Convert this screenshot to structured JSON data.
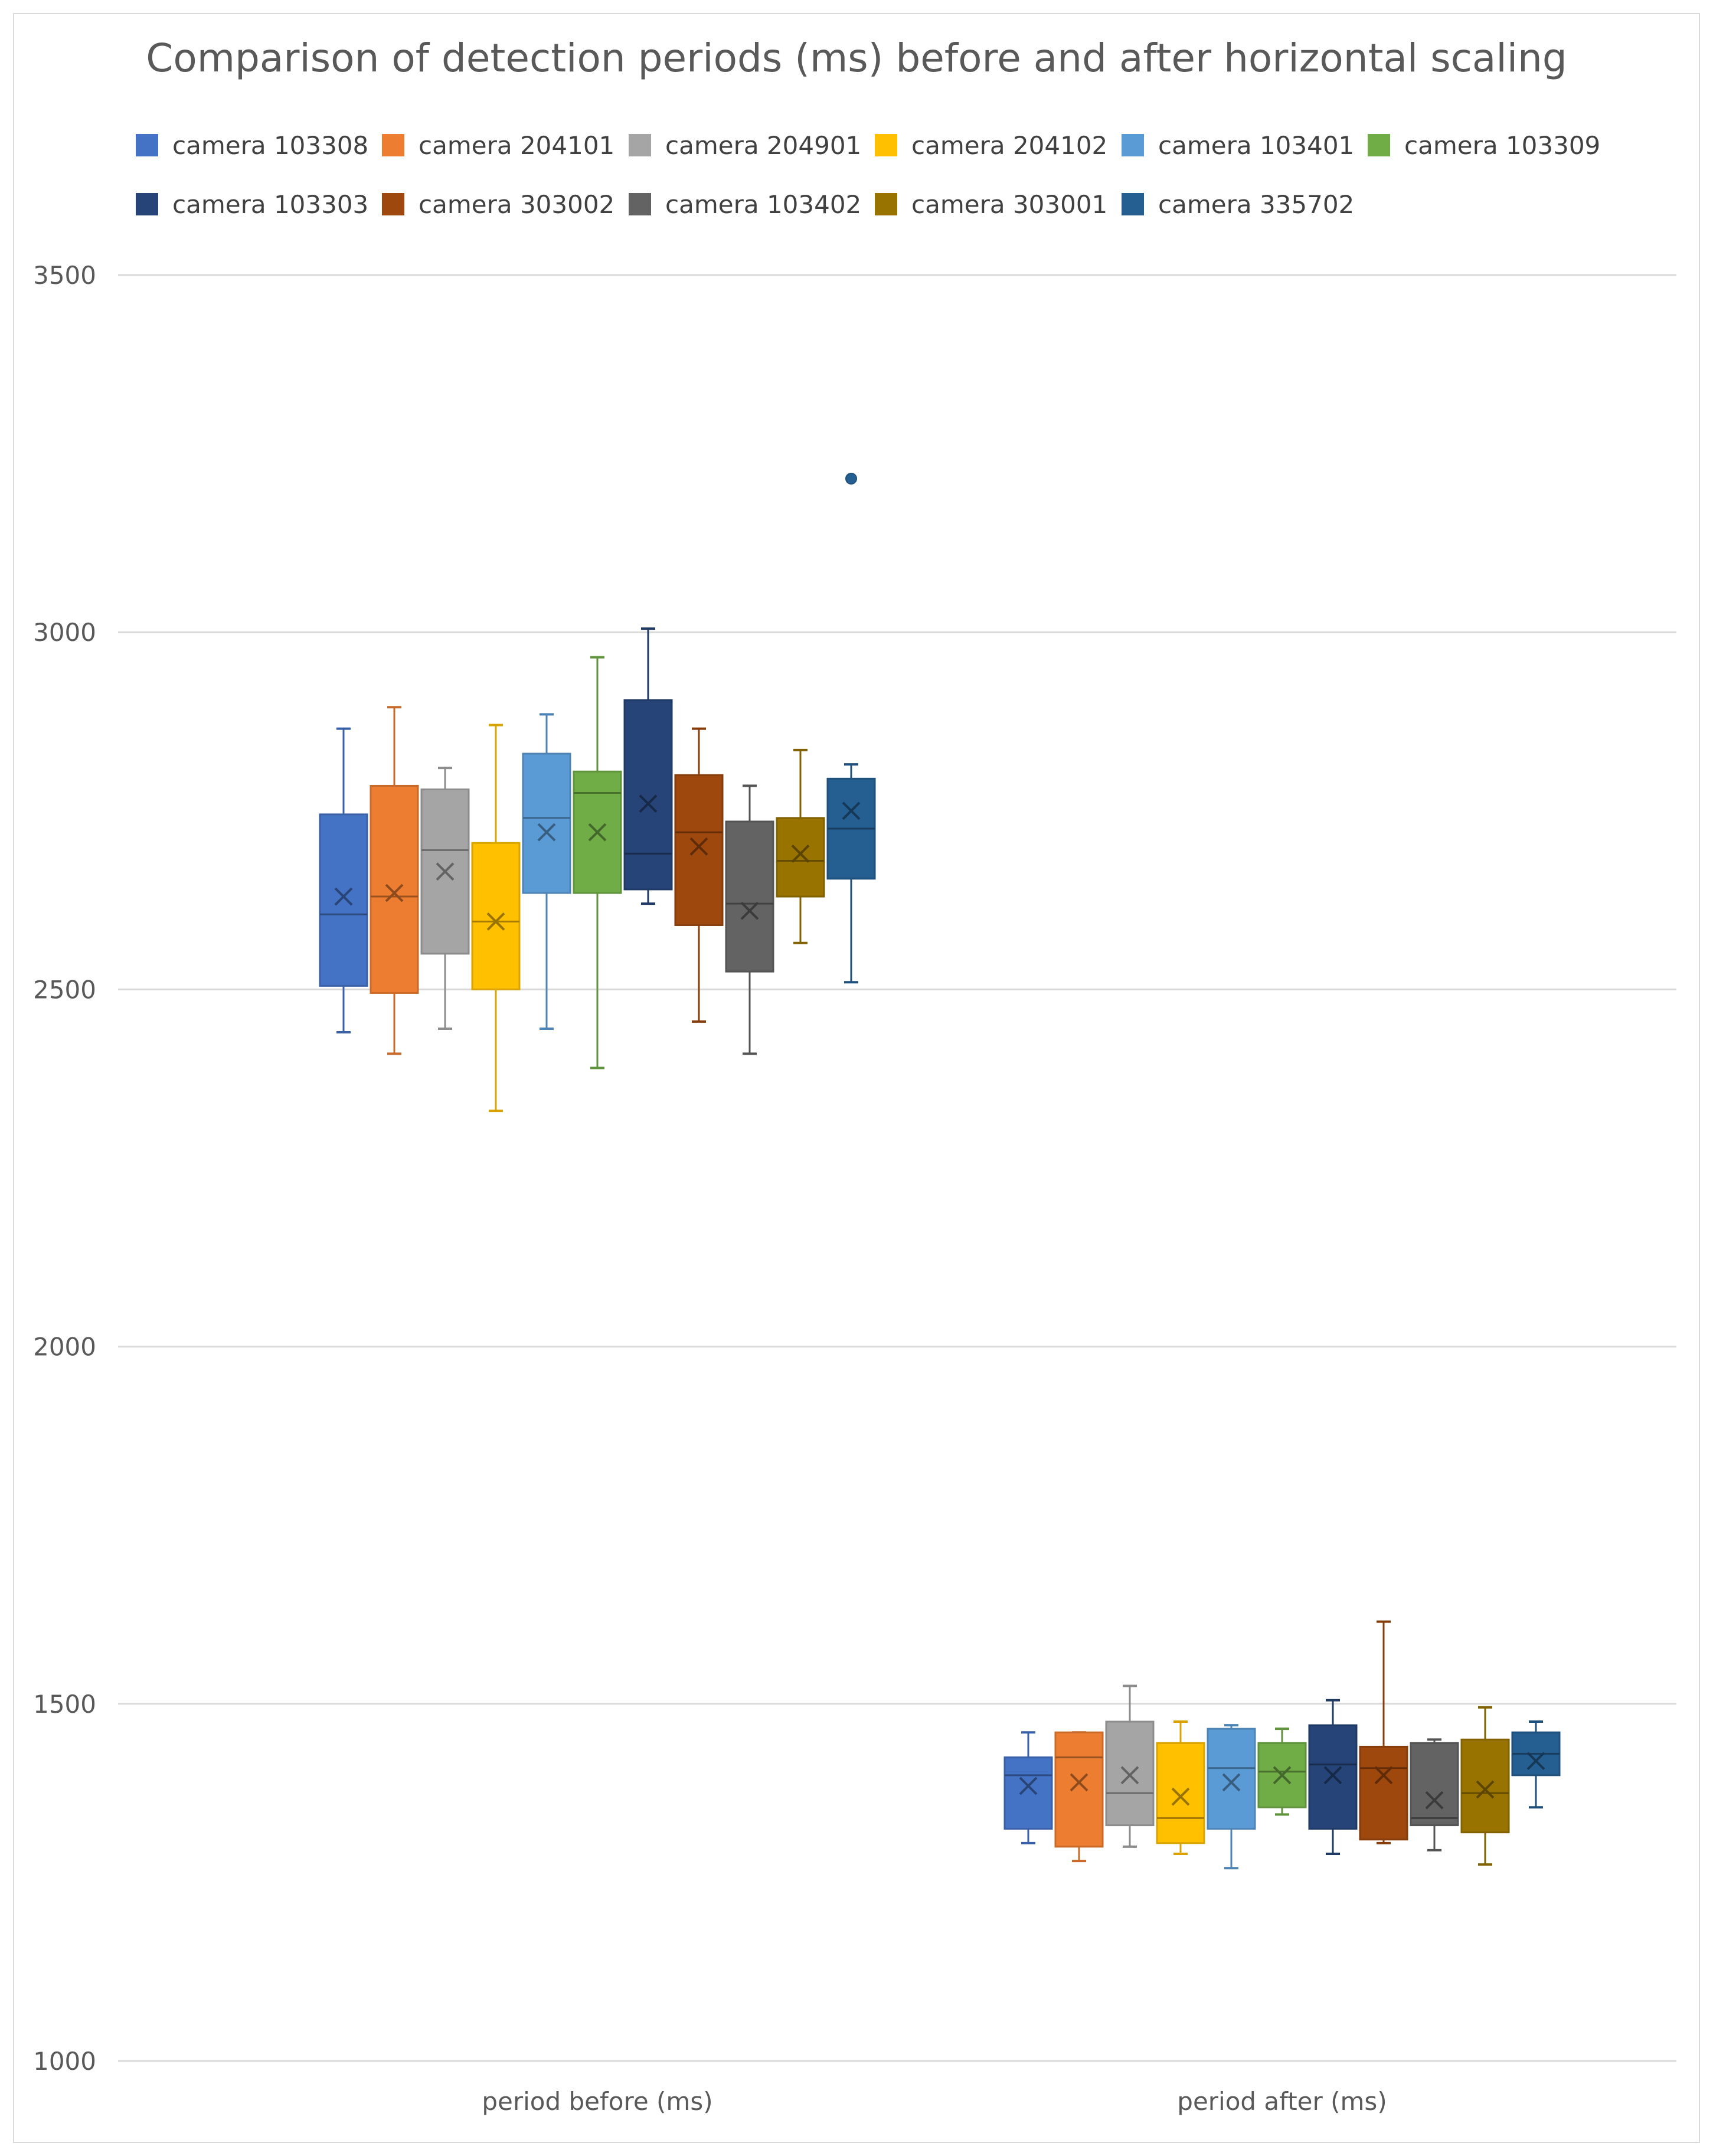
{
  "chart_data": {
    "type": "box",
    "title": "Comparison of detection periods (ms) before and after horizontal scaling",
    "xlabel": "",
    "ylabel": "",
    "ylim": [
      1000,
      3500
    ],
    "yticks": [
      "3500",
      "3000",
      "2500",
      "2000",
      "1500",
      "1000"
    ],
    "ytick_values": [
      3500,
      3000,
      2500,
      2000,
      1500,
      1000
    ],
    "categories": [
      "period before (ms)",
      "period after (ms)"
    ],
    "grid": true,
    "legend_position": "top",
    "series": [
      {
        "name": "camera 103308",
        "color": "#4472c4",
        "boxes": [
          {
            "min": 2440,
            "q1": 2505,
            "median": 2605,
            "q3": 2745,
            "max": 2865,
            "mean": 2630,
            "outliers": []
          },
          {
            "min": 1305,
            "q1": 1325,
            "median": 1400,
            "q3": 1425,
            "max": 1460,
            "mean": 1385,
            "outliers": []
          }
        ]
      },
      {
        "name": "camera 204101",
        "color": "#ed7d31",
        "boxes": [
          {
            "min": 2410,
            "q1": 2495,
            "median": 2630,
            "q3": 2785,
            "max": 2895,
            "mean": 2635,
            "outliers": []
          },
          {
            "min": 1280,
            "q1": 1300,
            "median": 1425,
            "q3": 1460,
            "max": 1460,
            "mean": 1390,
            "outliers": []
          }
        ]
      },
      {
        "name": "camera 204901",
        "color": "#a5a5a5",
        "boxes": [
          {
            "min": 2445,
            "q1": 2550,
            "median": 2695,
            "q3": 2780,
            "max": 2810,
            "mean": 2665,
            "outliers": []
          },
          {
            "min": 1300,
            "q1": 1330,
            "median": 1375,
            "q3": 1475,
            "max": 1525,
            "mean": 1400,
            "outliers": []
          }
        ]
      },
      {
        "name": "camera 204102",
        "color": "#ffc000",
        "boxes": [
          {
            "min": 2330,
            "q1": 2500,
            "median": 2595,
            "q3": 2705,
            "max": 2870,
            "mean": 2595,
            "outliers": []
          },
          {
            "min": 1290,
            "q1": 1305,
            "median": 1340,
            "q3": 1445,
            "max": 1475,
            "mean": 1370,
            "outliers": []
          }
        ]
      },
      {
        "name": "camera 103401",
        "color": "#5b9bd5",
        "boxes": [
          {
            "min": 2445,
            "q1": 2635,
            "median": 2740,
            "q3": 2830,
            "max": 2885,
            "mean": 2720,
            "outliers": []
          },
          {
            "min": 1270,
            "q1": 1325,
            "median": 1410,
            "q3": 1465,
            "max": 1470,
            "mean": 1390,
            "outliers": []
          }
        ]
      },
      {
        "name": "camera 103309",
        "color": "#70ad47",
        "boxes": [
          {
            "min": 2390,
            "q1": 2635,
            "median": 2775,
            "q3": 2805,
            "max": 2965,
            "mean": 2720,
            "outliers": []
          },
          {
            "min": 1345,
            "q1": 1355,
            "median": 1405,
            "q3": 1445,
            "max": 1465,
            "mean": 1400,
            "outliers": []
          }
        ]
      },
      {
        "name": "camera 103303",
        "color": "#264478",
        "boxes": [
          {
            "min": 2620,
            "q1": 2640,
            "median": 2690,
            "q3": 2905,
            "max": 3005,
            "mean": 2760,
            "outliers": []
          },
          {
            "min": 1290,
            "q1": 1325,
            "median": 1415,
            "q3": 1470,
            "max": 1505,
            "mean": 1400,
            "outliers": []
          }
        ]
      },
      {
        "name": "camera 303002",
        "color": "#9e480e",
        "boxes": [
          {
            "min": 2455,
            "q1": 2590,
            "median": 2720,
            "q3": 2800,
            "max": 2865,
            "mean": 2700,
            "outliers": []
          },
          {
            "min": 1305,
            "q1": 1310,
            "median": 1410,
            "q3": 1440,
            "max": 1615,
            "mean": 1400,
            "outliers": []
          }
        ]
      },
      {
        "name": "camera 103402",
        "color": "#636363",
        "boxes": [
          {
            "min": 2410,
            "q1": 2525,
            "median": 2620,
            "q3": 2735,
            "max": 2785,
            "mean": 2610,
            "outliers": []
          },
          {
            "min": 1295,
            "q1": 1330,
            "median": 1340,
            "q3": 1445,
            "max": 1450,
            "mean": 1365,
            "outliers": []
          }
        ]
      },
      {
        "name": "camera 303001",
        "color": "#997300",
        "boxes": [
          {
            "min": 2565,
            "q1": 2630,
            "median": 2680,
            "q3": 2740,
            "max": 2835,
            "mean": 2690,
            "outliers": []
          },
          {
            "min": 1275,
            "q1": 1320,
            "median": 1375,
            "q3": 1450,
            "max": 1495,
            "mean": 1380,
            "outliers": []
          }
        ]
      },
      {
        "name": "camera 335702",
        "color": "#255e91",
        "boxes": [
          {
            "min": 2510,
            "q1": 2655,
            "median": 2725,
            "q3": 2795,
            "max": 2815,
            "mean": 2750,
            "outliers": [
              3215
            ]
          },
          {
            "min": 1355,
            "q1": 1400,
            "median": 1430,
            "q3": 1460,
            "max": 1475,
            "mean": 1420,
            "outliers": []
          }
        ]
      }
    ]
  }
}
